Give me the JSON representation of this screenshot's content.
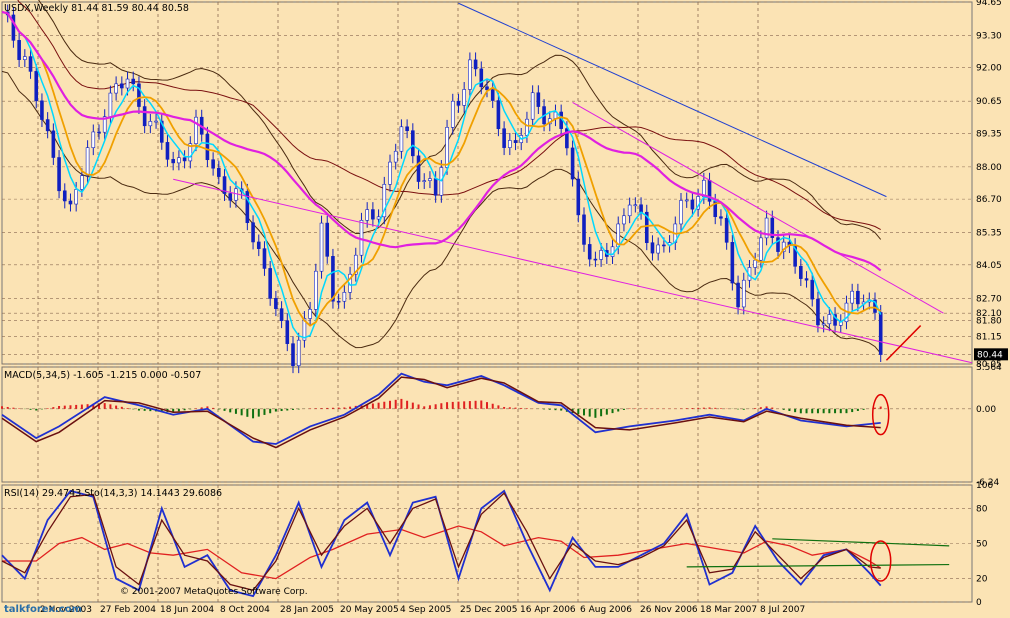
{
  "chart_data": [
    {
      "type": "candlestick",
      "title": "USDX,Weekly  81.44 81.59 80.44 80.58",
      "ylim": [
        80.05,
        94.65
      ],
      "y_ticks": [
        "94.65",
        "93.30",
        "92.00",
        "90.65",
        "89.35",
        "88.00",
        "86.70",
        "85.35",
        "84.05",
        "82.70",
        "82.10",
        "81.80",
        "81.15",
        "80.44",
        "80.05"
      ],
      "current_price": "80.44",
      "x_ticks": [
        "2 Nov 2003",
        "27 Feb 2004",
        "18 Jun 2004",
        "8 Oct 2004",
        "28 Jan 2005",
        "20 May 2005",
        "4 Sep 2005",
        "25 Dec 2005",
        "16 Apr 2006",
        "6 Aug 2006",
        "26 Nov 2006",
        "18 Mar 2007",
        "8 Jul 2007"
      ],
      "price_path": [
        [
          0,
          94.0
        ],
        [
          4,
          92.5
        ],
        [
          8,
          89.0
        ],
        [
          12,
          86.2
        ],
        [
          15,
          88.5
        ],
        [
          18,
          90.5
        ],
        [
          22,
          91.5
        ],
        [
          26,
          89.8
        ],
        [
          30,
          88.0
        ],
        [
          34,
          89.5
        ],
        [
          38,
          87.5
        ],
        [
          42,
          86.5
        ],
        [
          46,
          84.0
        ],
        [
          49,
          81.2
        ],
        [
          51,
          80.4
        ],
        [
          54,
          82.5
        ],
        [
          56,
          85.2
        ],
        [
          58,
          83.0
        ],
        [
          60,
          82.8
        ],
        [
          63,
          85.5
        ],
        [
          66,
          86.5
        ],
        [
          70,
          89.5
        ],
        [
          73,
          88.0
        ],
        [
          76,
          86.8
        ],
        [
          79,
          90.5
        ],
        [
          82,
          92.0
        ],
        [
          85,
          91.0
        ],
        [
          88,
          89.3
        ],
        [
          90,
          88.5
        ],
        [
          93,
          90.8
        ],
        [
          96,
          90.0
        ],
        [
          99,
          89.0
        ],
        [
          101,
          86.0
        ],
        [
          104,
          83.8
        ],
        [
          107,
          85.0
        ],
        [
          110,
          86.8
        ],
        [
          113,
          85.0
        ],
        [
          116,
          84.8
        ],
        [
          120,
          86.5
        ],
        [
          123,
          87.3
        ],
        [
          126,
          85.5
        ],
        [
          129,
          82.8
        ],
        [
          131,
          83.8
        ],
        [
          134,
          85.5
        ],
        [
          137,
          85.0
        ],
        [
          140,
          83.5
        ],
        [
          143,
          82.2
        ],
        [
          146,
          81.4
        ],
        [
          149,
          82.8
        ],
        [
          151,
          83.0
        ],
        [
          153,
          81.7
        ],
        [
          154,
          80.5
        ]
      ]
    },
    {
      "type": "line",
      "title": "MACD(5,34,5) -1.605 -1.215 0.000 -0.507",
      "ylim": [
        -6.24,
        3.564
      ],
      "y_ticks": [
        "3.564",
        "0.00",
        "-6.24"
      ],
      "series": [
        {
          "values": [
            [
              0,
              -0.5
            ],
            [
              6,
              -2.5
            ],
            [
              10,
              -1.5
            ],
            [
              18,
              1.0
            ],
            [
              24,
              0.3
            ],
            [
              30,
              -0.5
            ],
            [
              36,
              0.0
            ],
            [
              44,
              -2.8
            ],
            [
              48,
              -3.0
            ],
            [
              54,
              -1.5
            ],
            [
              60,
              -0.5
            ],
            [
              66,
              1.2
            ],
            [
              70,
              3.0
            ],
            [
              74,
              2.3
            ],
            [
              78,
              2.0
            ],
            [
              84,
              2.8
            ],
            [
              88,
              2.0
            ],
            [
              94,
              0.5
            ],
            [
              98,
              0.3
            ],
            [
              104,
              -2.0
            ],
            [
              110,
              -1.5
            ],
            [
              118,
              -1.0
            ],
            [
              124,
              -0.5
            ],
            [
              130,
              -1.0
            ],
            [
              134,
              0.0
            ],
            [
              140,
              -1.0
            ],
            [
              148,
              -1.5
            ],
            [
              154,
              -1.2
            ]
          ]
        },
        {
          "values": [
            [
              0,
              -0.8
            ],
            [
              6,
              -2.8
            ],
            [
              10,
              -2.0
            ],
            [
              18,
              0.7
            ],
            [
              24,
              0.5
            ],
            [
              30,
              -0.3
            ],
            [
              36,
              -0.2
            ],
            [
              44,
              -2.5
            ],
            [
              48,
              -3.3
            ],
            [
              54,
              -1.8
            ],
            [
              60,
              -0.7
            ],
            [
              66,
              0.9
            ],
            [
              70,
              2.7
            ],
            [
              74,
              2.5
            ],
            [
              78,
              1.8
            ],
            [
              84,
              2.6
            ],
            [
              88,
              2.2
            ],
            [
              94,
              0.6
            ],
            [
              98,
              0.5
            ],
            [
              104,
              -1.6
            ],
            [
              110,
              -1.8
            ],
            [
              118,
              -1.2
            ],
            [
              124,
              -0.7
            ],
            [
              130,
              -1.1
            ],
            [
              134,
              -0.2
            ],
            [
              140,
              -0.8
            ],
            [
              148,
              -1.4
            ],
            [
              154,
              -1.6
            ]
          ]
        }
      ]
    },
    {
      "type": "line",
      "title": "RSI(14) 29.4743  Sto(14,3,3) 14.1443 29.6086",
      "ylim": [
        0,
        100
      ],
      "y_ticks": [
        "100",
        "80",
        "50",
        "20",
        "0"
      ],
      "series": [
        {
          "values": [
            [
              0,
              35
            ],
            [
              6,
              35
            ],
            [
              10,
              50
            ],
            [
              14,
              55
            ],
            [
              18,
              45
            ],
            [
              22,
              50
            ],
            [
              26,
              42
            ],
            [
              30,
              40
            ],
            [
              36,
              45
            ],
            [
              42,
              25
            ],
            [
              48,
              20
            ],
            [
              54,
              38
            ],
            [
              58,
              45
            ],
            [
              64,
              58
            ],
            [
              70,
              62
            ],
            [
              74,
              55
            ],
            [
              80,
              65
            ],
            [
              84,
              60
            ],
            [
              88,
              48
            ],
            [
              94,
              55
            ],
            [
              98,
              52
            ],
            [
              102,
              38
            ],
            [
              108,
              40
            ],
            [
              114,
              45
            ],
            [
              120,
              50
            ],
            [
              126,
              45
            ],
            [
              130,
              42
            ],
            [
              134,
              52
            ],
            [
              138,
              48
            ],
            [
              142,
              40
            ],
            [
              148,
              45
            ],
            [
              152,
              35
            ],
            [
              154,
              29
            ]
          ]
        },
        {
          "values": [
            [
              0,
              40
            ],
            [
              4,
              20
            ],
            [
              8,
              70
            ],
            [
              12,
              95
            ],
            [
              16,
              90
            ],
            [
              20,
              20
            ],
            [
              24,
              10
            ],
            [
              28,
              80
            ],
            [
              32,
              30
            ],
            [
              36,
              40
            ],
            [
              40,
              10
            ],
            [
              44,
              5
            ],
            [
              48,
              40
            ],
            [
              52,
              85
            ],
            [
              56,
              30
            ],
            [
              60,
              70
            ],
            [
              64,
              85
            ],
            [
              68,
              40
            ],
            [
              72,
              85
            ],
            [
              76,
              90
            ],
            [
              80,
              20
            ],
            [
              84,
              80
            ],
            [
              88,
              95
            ],
            [
              92,
              50
            ],
            [
              96,
              10
            ],
            [
              100,
              55
            ],
            [
              104,
              30
            ],
            [
              108,
              30
            ],
            [
              112,
              40
            ],
            [
              116,
              50
            ],
            [
              120,
              75
            ],
            [
              124,
              15
            ],
            [
              128,
              25
            ],
            [
              132,
              65
            ],
            [
              136,
              35
            ],
            [
              140,
              15
            ],
            [
              144,
              40
            ],
            [
              148,
              45
            ],
            [
              152,
              25
            ],
            [
              154,
              14
            ]
          ]
        },
        {
          "values": [
            [
              0,
              35
            ],
            [
              4,
              25
            ],
            [
              8,
              60
            ],
            [
              12,
              90
            ],
            [
              16,
              92
            ],
            [
              20,
              30
            ],
            [
              24,
              15
            ],
            [
              28,
              70
            ],
            [
              32,
              40
            ],
            [
              36,
              35
            ],
            [
              40,
              15
            ],
            [
              44,
              10
            ],
            [
              48,
              35
            ],
            [
              52,
              80
            ],
            [
              56,
              40
            ],
            [
              60,
              65
            ],
            [
              64,
              80
            ],
            [
              68,
              50
            ],
            [
              72,
              80
            ],
            [
              76,
              88
            ],
            [
              80,
              30
            ],
            [
              84,
              75
            ],
            [
              88,
              93
            ],
            [
              92,
              60
            ],
            [
              96,
              20
            ],
            [
              100,
              50
            ],
            [
              104,
              35
            ],
            [
              108,
              32
            ],
            [
              112,
              38
            ],
            [
              116,
              48
            ],
            [
              120,
              70
            ],
            [
              124,
              25
            ],
            [
              128,
              28
            ],
            [
              132,
              60
            ],
            [
              136,
              40
            ],
            [
              140,
              20
            ],
            [
              144,
              38
            ],
            [
              148,
              45
            ],
            [
              152,
              30
            ],
            [
              154,
              29
            ]
          ]
        }
      ]
    }
  ],
  "watermark": "talkforex.com",
  "copyright": "© 2001-2007 MetaQuotes Software Corp."
}
